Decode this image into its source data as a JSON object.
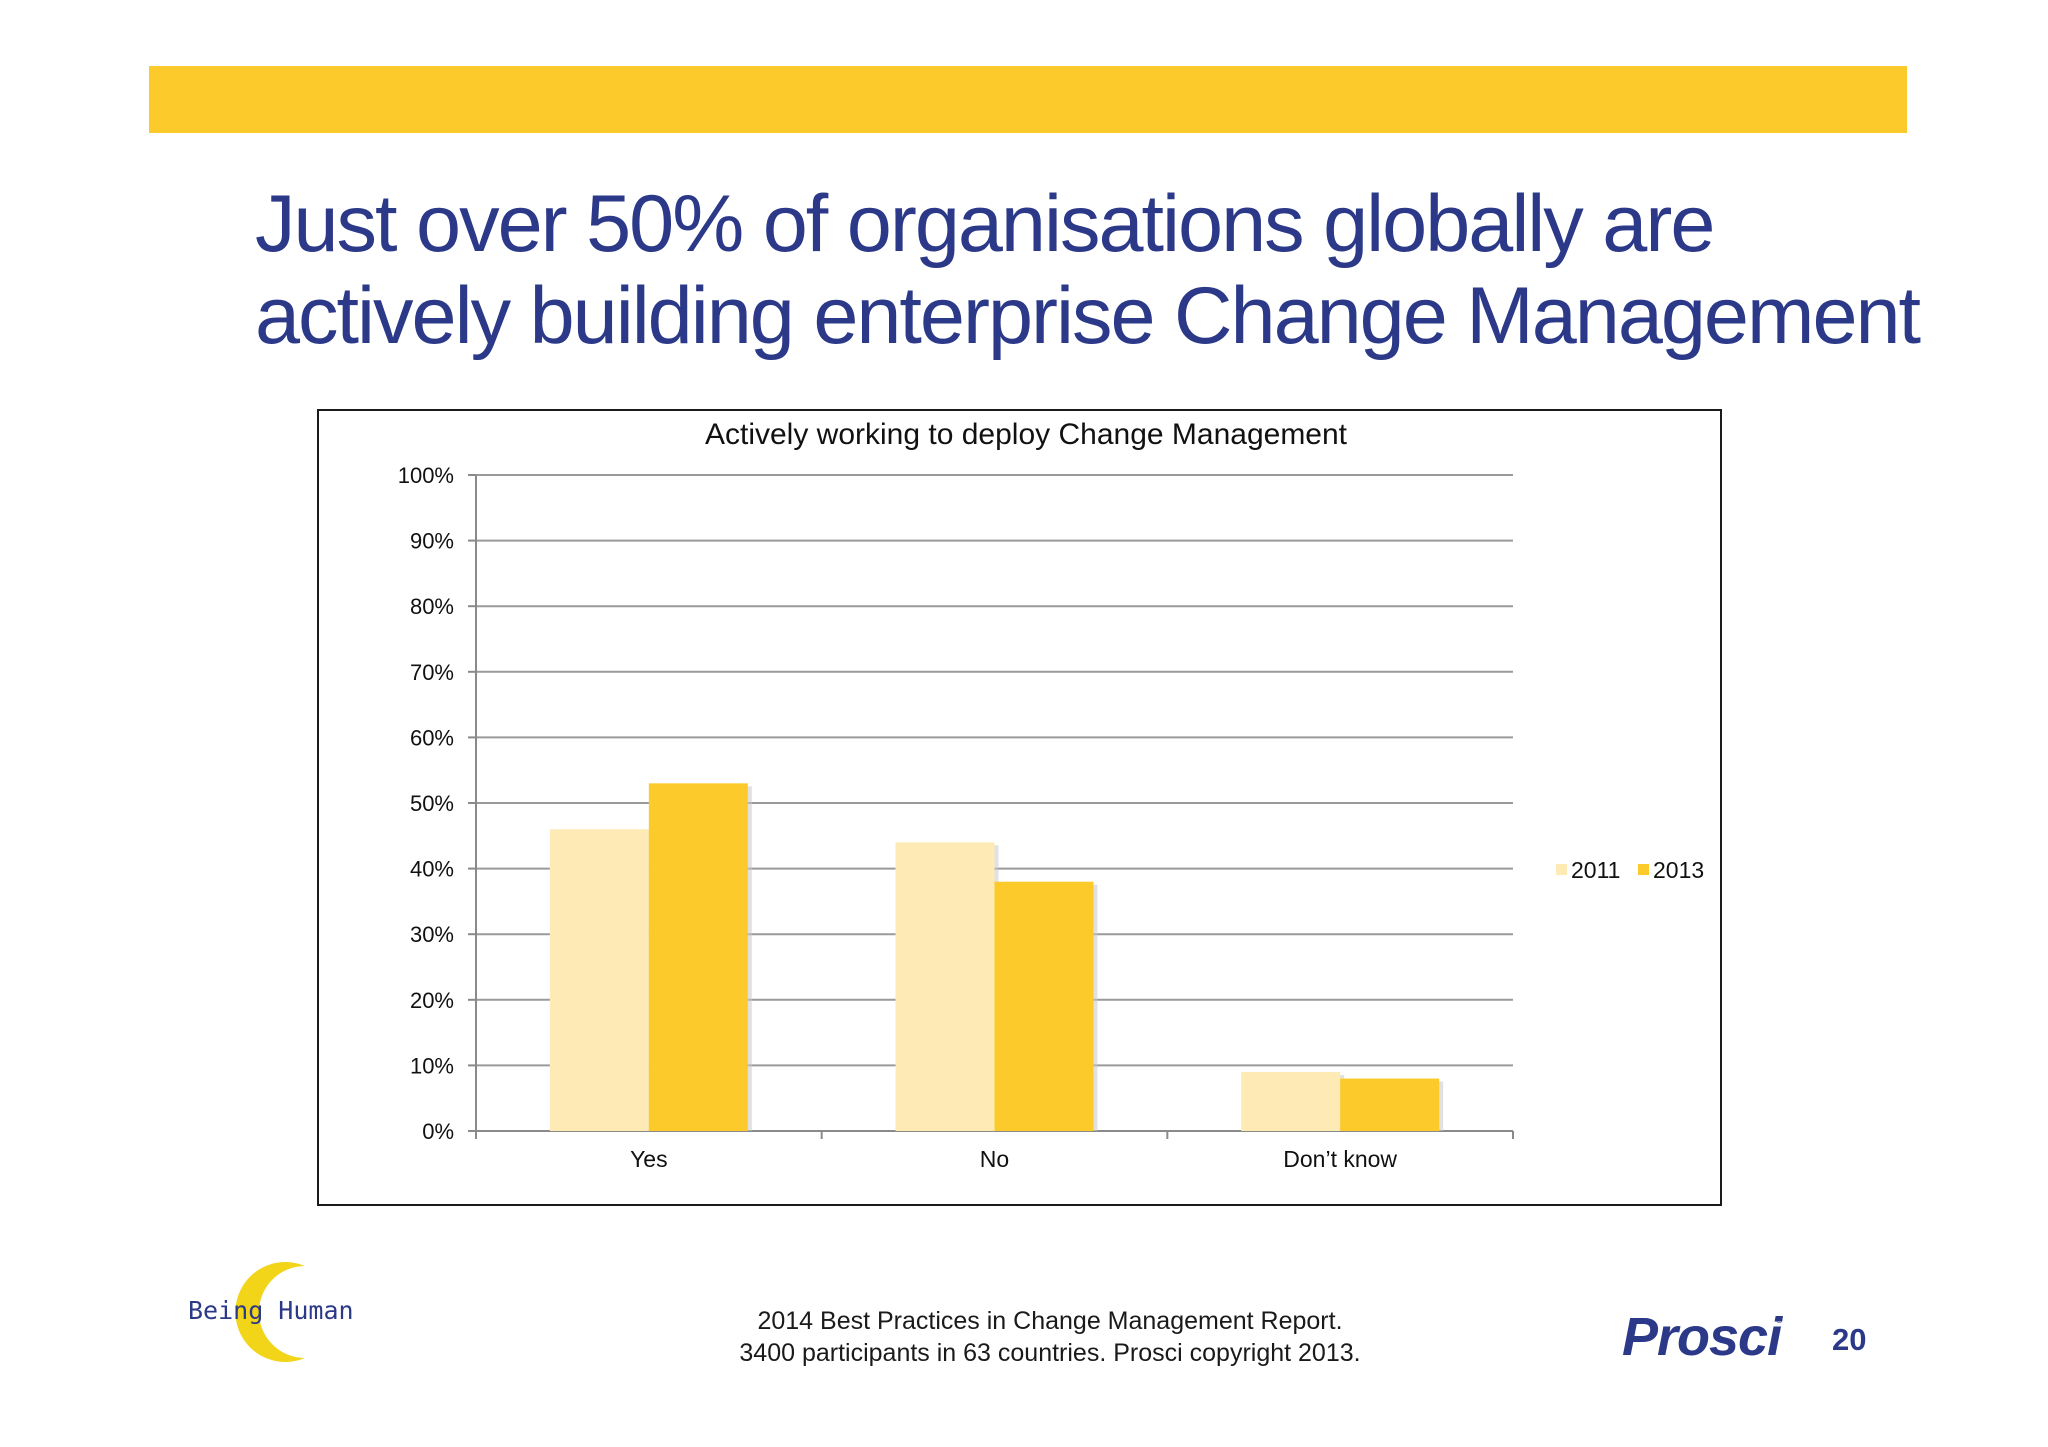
{
  "slide": {
    "headline_line1": "Just over 50% of organisations globally are",
    "headline_line2": "actively building enterprise Change Management",
    "footer_line1": "2014 Best Practices in Change Management Report.",
    "footer_line2": "3400 participants in 63 countries.  Prosci copyright 2013.",
    "logo_left_text": "Being Human",
    "logo_right_text": "Prosci",
    "logo_right_mark": "®",
    "page_number": "20",
    "accent_color": "#fdca2c",
    "title_color": "#2b3988"
  },
  "chart_data": {
    "type": "bar",
    "title": "Actively working to deploy Change Management",
    "categories": [
      "Yes",
      "No",
      "Don’t know"
    ],
    "series": [
      {
        "name": "2011",
        "values": [
          46,
          44,
          9
        ],
        "color": "#feeab5"
      },
      {
        "name": "2013",
        "values": [
          53,
          38,
          8
        ],
        "color": "#fdca2c"
      }
    ],
    "ylim": [
      0,
      100
    ],
    "yticks": [
      0,
      10,
      20,
      30,
      40,
      50,
      60,
      70,
      80,
      90,
      100
    ],
    "ytick_format": "{v}%",
    "grid": true,
    "legend_position": "right"
  }
}
